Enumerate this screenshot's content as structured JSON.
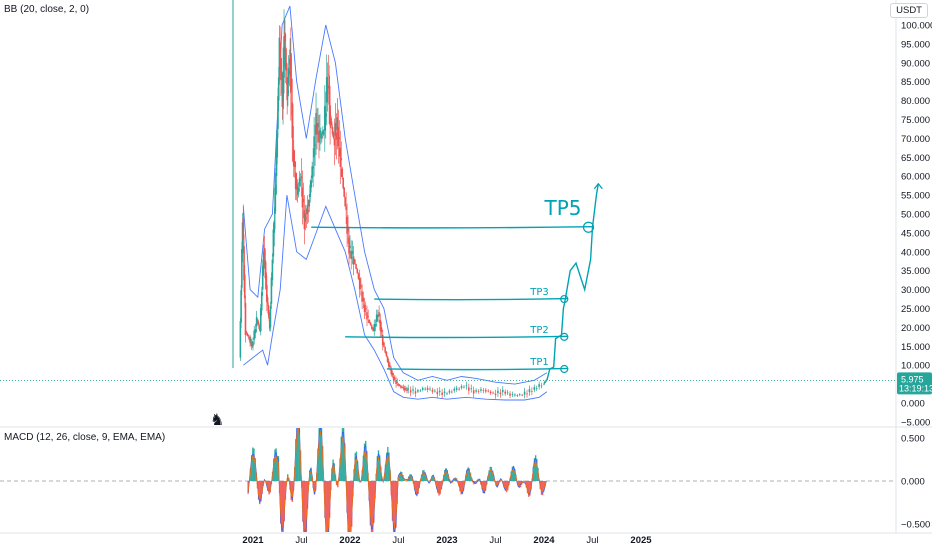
{
  "header": {
    "indicator_label": "BB (20, close, 2, 0)",
    "currency": "USDT"
  },
  "macd": {
    "indicator_label": "MACD (12, 26, close, 9, EMA, EMA)"
  },
  "price_badge": {
    "price": "5.975",
    "countdown": "13:19:13",
    "color": "#26a69a"
  },
  "chart_data": {
    "type": "line",
    "price_axis": {
      "ticks": [
        100,
        95,
        90,
        85,
        80,
        75,
        70,
        65,
        60,
        55,
        50,
        45,
        40,
        35,
        30,
        25,
        20,
        15,
        10,
        5,
        0,
        -5
      ],
      "tick_labels": [
        "100.000",
        "95.000",
        "90.000",
        "85.000",
        "80.000",
        "75.000",
        "70.000",
        "65.000",
        "60.000",
        "55.000",
        "50.000",
        "45.000",
        "40.000",
        "35.000",
        "30.000",
        "25.000",
        "20.000",
        "15.000",
        "10.000",
        "5.000",
        "0.000",
        "−5.000"
      ],
      "ylim": [
        -6,
        105
      ]
    },
    "macd_axis": {
      "ticks": [
        0.5,
        0,
        -0.5
      ],
      "tick_labels": [
        "0.500",
        "0.000",
        "−0.500"
      ],
      "ylim": [
        -0.62,
        0.62
      ]
    },
    "time_axis": {
      "labels": [
        {
          "text": "2021",
          "year": true,
          "t": 2021.0
        },
        {
          "text": "Jul",
          "year": false,
          "t": 2021.5
        },
        {
          "text": "2022",
          "year": true,
          "t": 2022.0
        },
        {
          "text": "Jul",
          "year": false,
          "t": 2022.5
        },
        {
          "text": "2023",
          "year": true,
          "t": 2023.0
        },
        {
          "text": "Jul",
          "year": false,
          "t": 2023.5
        },
        {
          "text": "2024",
          "year": true,
          "t": 2024.0
        },
        {
          "text": "Jul",
          "year": false,
          "t": 2024.5
        },
        {
          "text": "2025",
          "year": true,
          "t": 2025.0
        }
      ]
    },
    "price_series": [
      [
        2020.87,
        12
      ],
      [
        2020.9,
        49
      ],
      [
        2020.93,
        19
      ],
      [
        2020.97,
        17
      ],
      [
        2021.0,
        15
      ],
      [
        2021.05,
        22
      ],
      [
        2021.08,
        19
      ],
      [
        2021.12,
        41
      ],
      [
        2021.15,
        28
      ],
      [
        2021.18,
        20
      ],
      [
        2021.22,
        45
      ],
      [
        2021.25,
        65
      ],
      [
        2021.28,
        95
      ],
      [
        2021.31,
        80
      ],
      [
        2021.33,
        98
      ],
      [
        2021.36,
        82
      ],
      [
        2021.39,
        92
      ],
      [
        2021.42,
        67
      ],
      [
        2021.46,
        55
      ],
      [
        2021.5,
        60
      ],
      [
        2021.54,
        48
      ],
      [
        2021.58,
        52
      ],
      [
        2021.62,
        62
      ],
      [
        2021.66,
        74
      ],
      [
        2021.7,
        70
      ],
      [
        2021.74,
        72
      ],
      [
        2021.78,
        87
      ],
      [
        2021.8,
        76
      ],
      [
        2021.84,
        70
      ],
      [
        2021.88,
        73
      ],
      [
        2021.92,
        62
      ],
      [
        2021.96,
        52
      ],
      [
        2022.0,
        41
      ],
      [
        2022.05,
        38
      ],
      [
        2022.1,
        33
      ],
      [
        2022.15,
        26
      ],
      [
        2022.2,
        22
      ],
      [
        2022.25,
        19
      ],
      [
        2022.3,
        24
      ],
      [
        2022.35,
        16
      ],
      [
        2022.4,
        11
      ],
      [
        2022.45,
        7
      ],
      [
        2022.5,
        5
      ],
      [
        2022.55,
        4
      ],
      [
        2022.6,
        3.5
      ],
      [
        2022.7,
        3
      ],
      [
        2022.8,
        4
      ],
      [
        2022.9,
        3
      ],
      [
        2023.0,
        2.5
      ],
      [
        2023.1,
        3.5
      ],
      [
        2023.2,
        4.5
      ],
      [
        2023.3,
        3
      ],
      [
        2023.4,
        3.5
      ],
      [
        2023.5,
        2.5
      ],
      [
        2023.6,
        3
      ],
      [
        2023.7,
        2
      ],
      [
        2023.8,
        2.2
      ],
      [
        2023.9,
        3.5
      ],
      [
        2024.0,
        5
      ],
      [
        2024.03,
        6
      ]
    ],
    "bb_upper": [
      [
        2020.9,
        52
      ],
      [
        2020.97,
        30
      ],
      [
        2021.05,
        28
      ],
      [
        2021.12,
        46
      ],
      [
        2021.2,
        50
      ],
      [
        2021.25,
        75
      ],
      [
        2021.3,
        100
      ],
      [
        2021.38,
        105
      ],
      [
        2021.45,
        85
      ],
      [
        2021.55,
        70
      ],
      [
        2021.65,
        86
      ],
      [
        2021.75,
        100
      ],
      [
        2021.85,
        90
      ],
      [
        2021.95,
        70
      ],
      [
        2022.05,
        55
      ],
      [
        2022.15,
        40
      ],
      [
        2022.25,
        30
      ],
      [
        2022.35,
        25
      ],
      [
        2022.45,
        12
      ],
      [
        2022.55,
        8
      ],
      [
        2022.7,
        6
      ],
      [
        2022.85,
        7
      ],
      [
        2023.0,
        6
      ],
      [
        2023.15,
        7
      ],
      [
        2023.3,
        6.5
      ],
      [
        2023.5,
        5.5
      ],
      [
        2023.7,
        5
      ],
      [
        2023.9,
        6
      ],
      [
        2024.03,
        8
      ]
    ],
    "bb_lower": [
      [
        2020.9,
        10
      ],
      [
        2021.0,
        12
      ],
      [
        2021.1,
        14
      ],
      [
        2021.15,
        10
      ],
      [
        2021.2,
        18
      ],
      [
        2021.28,
        30
      ],
      [
        2021.35,
        55
      ],
      [
        2021.45,
        40
      ],
      [
        2021.55,
        38
      ],
      [
        2021.65,
        45
      ],
      [
        2021.75,
        52
      ],
      [
        2021.85,
        46
      ],
      [
        2021.95,
        40
      ],
      [
        2022.05,
        30
      ],
      [
        2022.15,
        18
      ],
      [
        2022.25,
        14
      ],
      [
        2022.35,
        9
      ],
      [
        2022.45,
        3
      ],
      [
        2022.55,
        1.5
      ],
      [
        2022.7,
        1
      ],
      [
        2022.85,
        1.5
      ],
      [
        2023.0,
        1
      ],
      [
        2023.2,
        1.5
      ],
      [
        2023.4,
        1
      ],
      [
        2023.6,
        0.8
      ],
      [
        2023.8,
        0.8
      ],
      [
        2023.95,
        1.5
      ],
      [
        2024.03,
        3
      ]
    ],
    "current_price": 5.975,
    "tp_levels": [
      {
        "label": "TP1",
        "price": 9.0,
        "t_start": 2022.38,
        "t_end": 2024.25
      },
      {
        "label": "TP2",
        "price": 17.5,
        "t_start": 2021.95,
        "t_end": 2024.25
      },
      {
        "label": "TP3",
        "price": 27.5,
        "t_start": 2022.25,
        "t_end": 2024.25
      },
      {
        "label": "TP5",
        "price": 46.5,
        "t_start": 2021.6,
        "t_end": 2024.5
      }
    ],
    "annotations": [
      "TP1",
      "TP2",
      "TP3",
      "TP5"
    ],
    "projection_path": [
      [
        2024.03,
        6
      ],
      [
        2024.06,
        9
      ],
      [
        2024.1,
        9.5
      ],
      [
        2024.12,
        17
      ],
      [
        2024.18,
        18
      ],
      [
        2024.2,
        25
      ],
      [
        2024.22,
        27.5
      ],
      [
        2024.27,
        35
      ],
      [
        2024.33,
        37
      ],
      [
        2024.42,
        30
      ],
      [
        2024.48,
        38
      ],
      [
        2024.5,
        46.5
      ],
      [
        2024.54,
        55
      ],
      [
        2024.56,
        58
      ]
    ],
    "colors": {
      "accent": "#00a3b4",
      "price_up": "#26a69a",
      "price_down": "#ef5350",
      "bb_band": "#2962ff",
      "macd_line": "#2962ff",
      "signal_line": "#ff6d00",
      "hist_up": "#26a69a",
      "hist_down": "#ef5350"
    },
    "grid": false,
    "legend": "none"
  }
}
